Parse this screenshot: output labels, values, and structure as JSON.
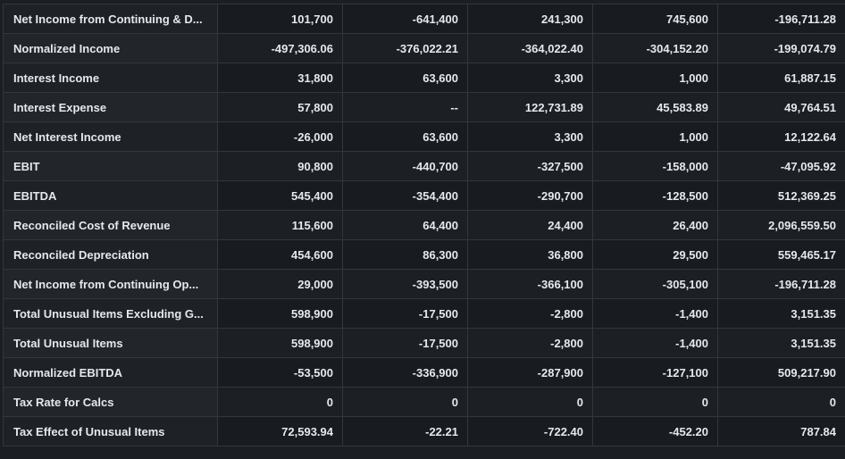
{
  "rows": [
    {
      "label": "Net Income from Continuing & D...",
      "values": [
        "101,700",
        "-641,400",
        "241,300",
        "745,600",
        "-196,711.28"
      ]
    },
    {
      "label": "Normalized Income",
      "values": [
        "-497,306.06",
        "-376,022.21",
        "-364,022.40",
        "-304,152.20",
        "-199,074.79"
      ]
    },
    {
      "label": "Interest Income",
      "values": [
        "31,800",
        "63,600",
        "3,300",
        "1,000",
        "61,887.15"
      ]
    },
    {
      "label": "Interest Expense",
      "values": [
        "57,800",
        "--",
        "122,731.89",
        "45,583.89",
        "49,764.51"
      ]
    },
    {
      "label": "Net Interest Income",
      "values": [
        "-26,000",
        "63,600",
        "3,300",
        "1,000",
        "12,122.64"
      ]
    },
    {
      "label": "EBIT",
      "values": [
        "90,800",
        "-440,700",
        "-327,500",
        "-158,000",
        "-47,095.92"
      ]
    },
    {
      "label": "EBITDA",
      "values": [
        "545,400",
        "-354,400",
        "-290,700",
        "-128,500",
        "512,369.25"
      ]
    },
    {
      "label": "Reconciled Cost of Revenue",
      "values": [
        "115,600",
        "64,400",
        "24,400",
        "26,400",
        "2,096,559.50"
      ]
    },
    {
      "label": "Reconciled Depreciation",
      "values": [
        "454,600",
        "86,300",
        "36,800",
        "29,500",
        "559,465.17"
      ]
    },
    {
      "label": "Net Income from Continuing Op...",
      "values": [
        "29,000",
        "-393,500",
        "-366,100",
        "-305,100",
        "-196,711.28"
      ]
    },
    {
      "label": "Total Unusual Items Excluding G...",
      "values": [
        "598,900",
        "-17,500",
        "-2,800",
        "-1,400",
        "3,151.35"
      ]
    },
    {
      "label": "Total Unusual Items",
      "values": [
        "598,900",
        "-17,500",
        "-2,800",
        "-1,400",
        "3,151.35"
      ]
    },
    {
      "label": "Normalized EBITDA",
      "values": [
        "-53,500",
        "-336,900",
        "-287,900",
        "-127,100",
        "509,217.90"
      ]
    },
    {
      "label": "Tax Rate for Calcs",
      "values": [
        "0",
        "0",
        "0",
        "0",
        "0"
      ]
    },
    {
      "label": "Tax Effect of Unusual Items",
      "values": [
        "72,593.94",
        "-22.21",
        "-722.40",
        "-452.20",
        "787.84"
      ]
    }
  ]
}
